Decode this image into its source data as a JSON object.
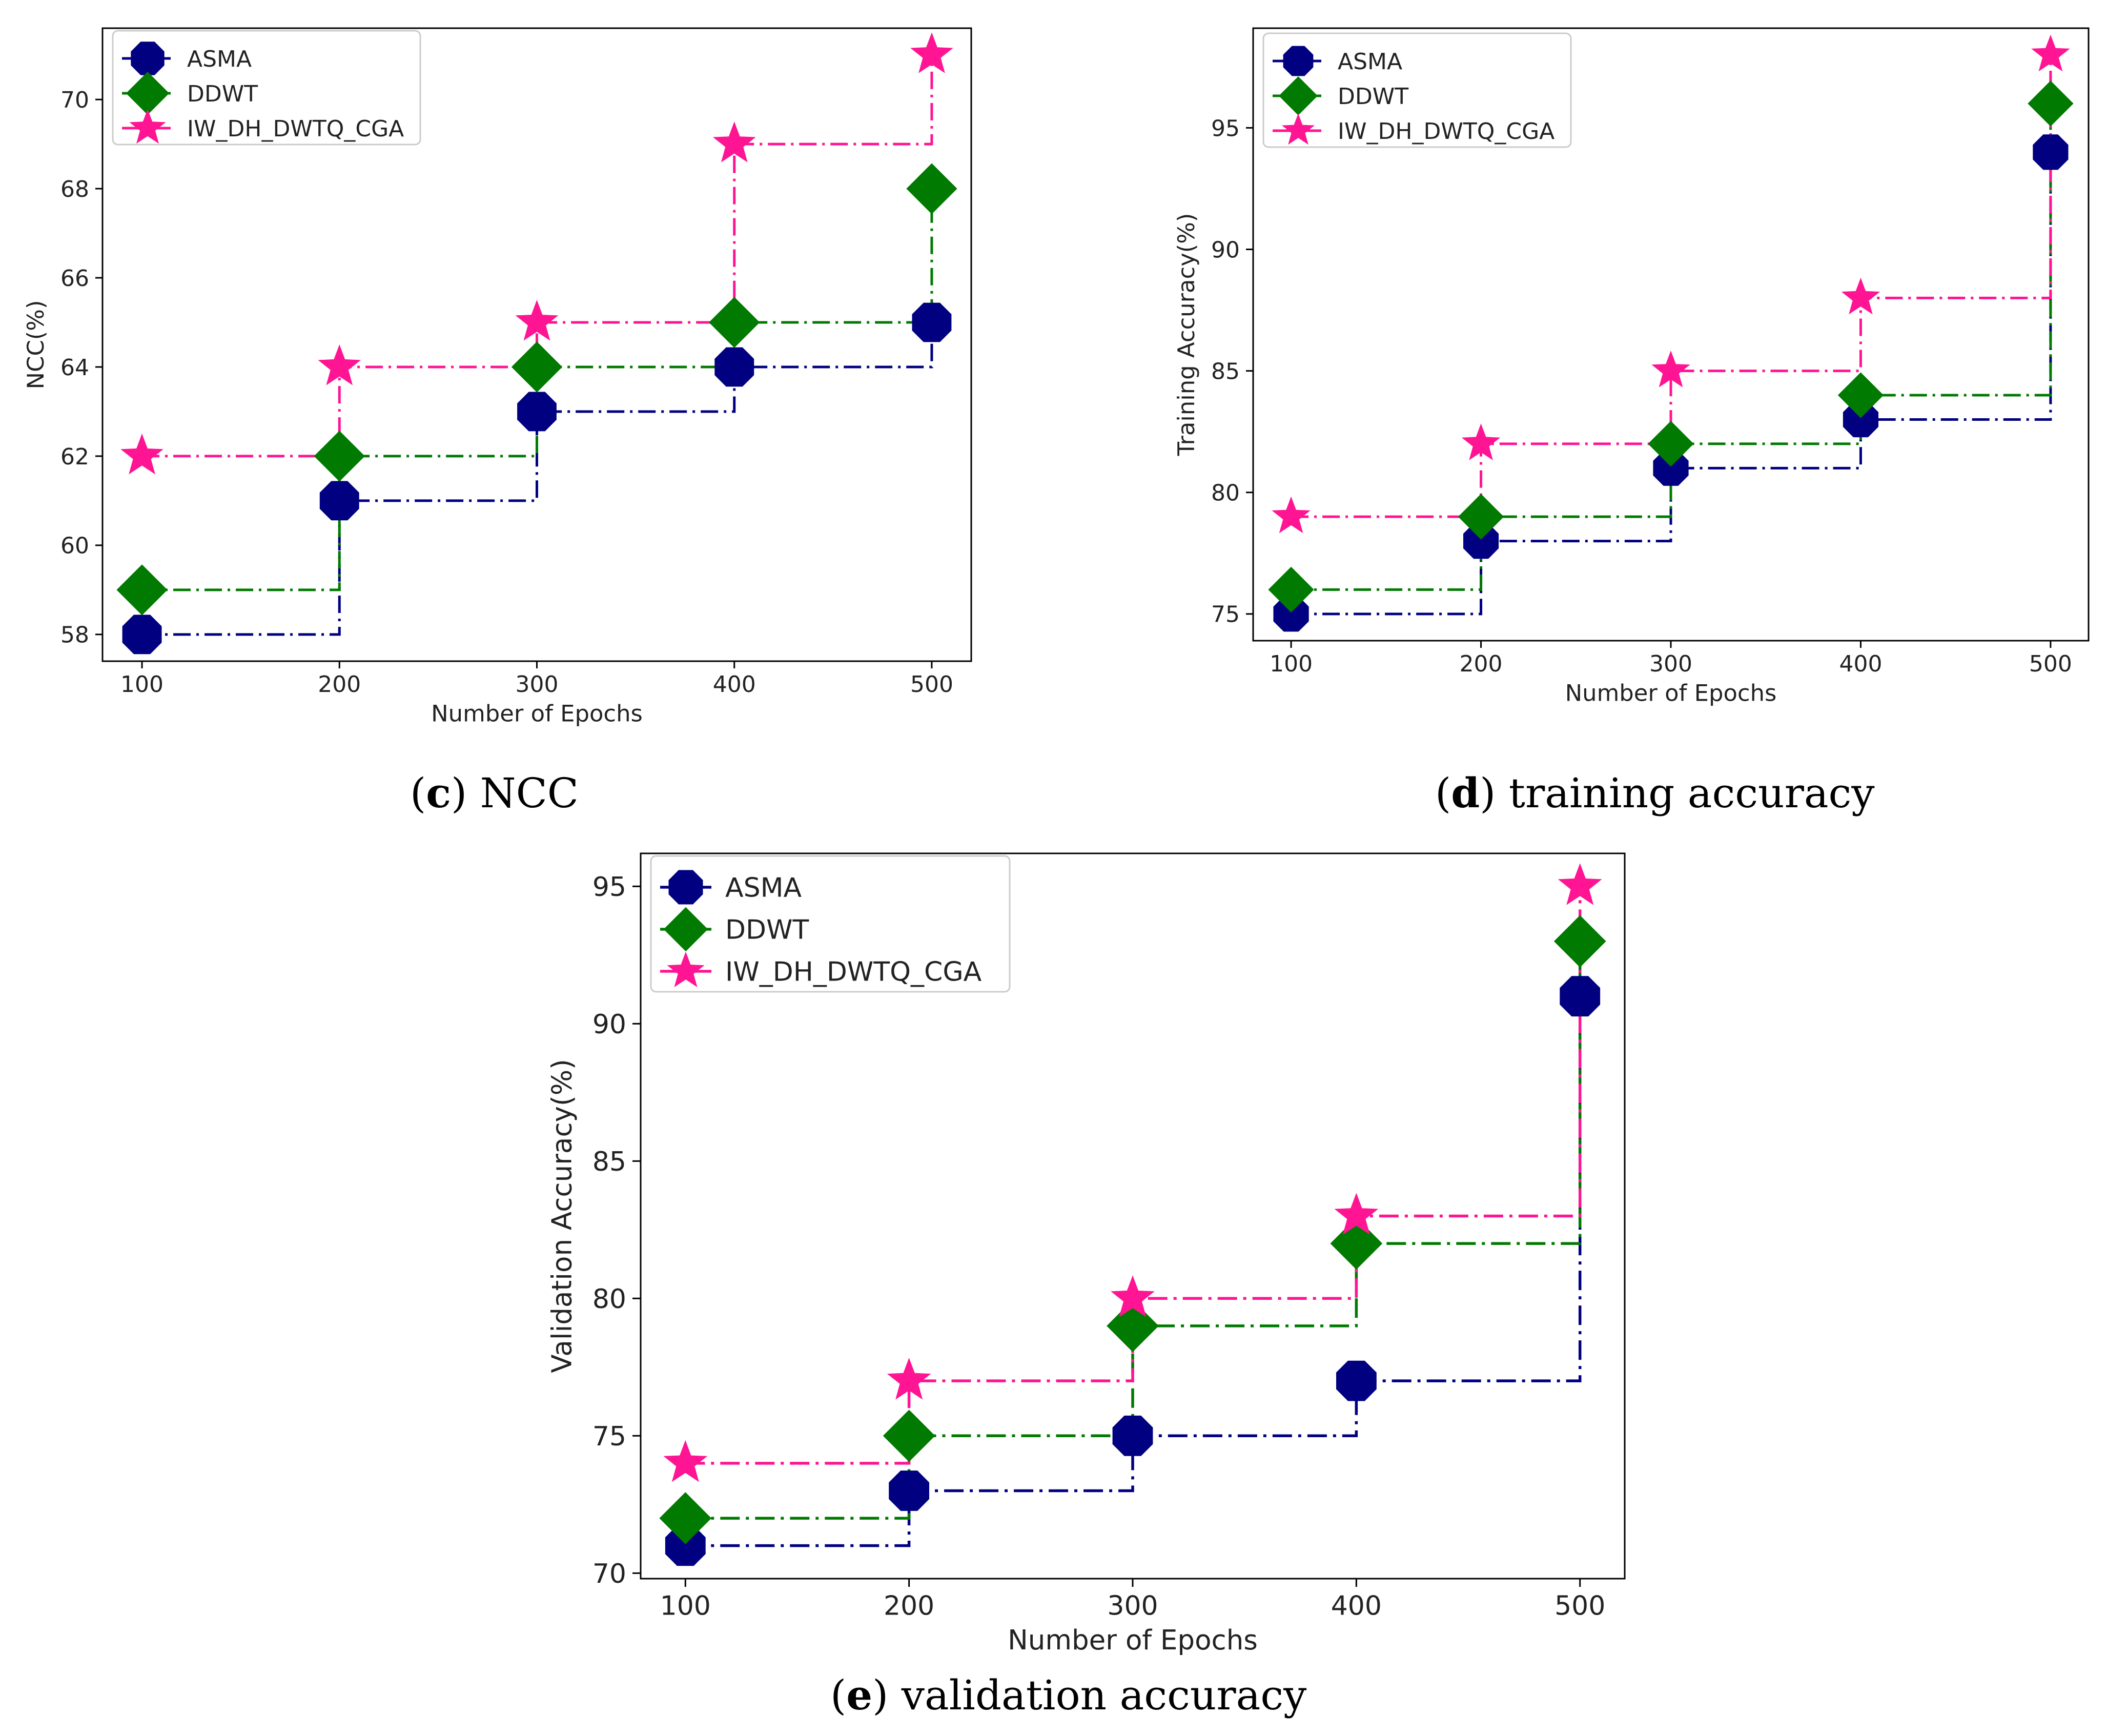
{
  "chart_data": [
    {
      "type": "line",
      "step": "post",
      "panel_letter": "c",
      "caption": "NCC",
      "xlabel": "Number of Epochs",
      "ylabel": "NCC(%)",
      "x": [
        100,
        200,
        300,
        400,
        500
      ],
      "xticks": [
        100,
        200,
        300,
        400,
        500
      ],
      "yticks": [
        58,
        60,
        62,
        64,
        66,
        68,
        70
      ],
      "xlim": [
        80,
        520
      ],
      "ylim": [
        57.4,
        71.6
      ],
      "legend_position": "top-left",
      "series": [
        {
          "name": "ASMA",
          "values": [
            58,
            61,
            63,
            64,
            65
          ],
          "color": "#000080",
          "marker": "octagon"
        },
        {
          "name": "DDWT",
          "values": [
            59,
            62,
            64,
            65,
            68
          ],
          "color": "#007a00",
          "marker": "diamond"
        },
        {
          "name": "IW_DH_DWTQ_CGA",
          "values": [
            62,
            64,
            65,
            69,
            71
          ],
          "color": "#ff1493",
          "marker": "star"
        }
      ]
    },
    {
      "type": "line",
      "step": "post",
      "panel_letter": "d",
      "caption": "training accuracy",
      "xlabel": "Number of Epochs",
      "ylabel": "Training Accuracy(%)",
      "x": [
        100,
        200,
        300,
        400,
        500
      ],
      "xticks": [
        100,
        200,
        300,
        400,
        500
      ],
      "yticks": [
        75,
        80,
        85,
        90,
        95
      ],
      "xlim": [
        80,
        520
      ],
      "ylim": [
        73.9,
        99.1
      ],
      "legend_position": "top-left",
      "series": [
        {
          "name": "ASMA",
          "values": [
            75,
            78,
            81,
            83,
            94
          ],
          "color": "#000080",
          "marker": "octagon"
        },
        {
          "name": "DDWT",
          "values": [
            76,
            79,
            82,
            84,
            96
          ],
          "color": "#007a00",
          "marker": "diamond"
        },
        {
          "name": "IW_DH_DWTQ_CGA",
          "values": [
            79,
            82,
            85,
            88,
            98
          ],
          "color": "#ff1493",
          "marker": "star"
        }
      ]
    },
    {
      "type": "line",
      "step": "post",
      "panel_letter": "e",
      "caption": "validation accuracy",
      "xlabel": "Number of Epochs",
      "ylabel": "Validation Accuracy(%)",
      "x": [
        100,
        200,
        300,
        400,
        500
      ],
      "xticks": [
        100,
        200,
        300,
        400,
        500
      ],
      "yticks": [
        70,
        75,
        80,
        85,
        90,
        95
      ],
      "xlim": [
        80,
        520
      ],
      "ylim": [
        69.8,
        96.2
      ],
      "legend_position": "top-left",
      "series": [
        {
          "name": "ASMA",
          "values": [
            71,
            73,
            75,
            77,
            91
          ],
          "color": "#000080",
          "marker": "octagon"
        },
        {
          "name": "DDWT",
          "values": [
            72,
            75,
            79,
            82,
            93
          ],
          "color": "#007a00",
          "marker": "diamond"
        },
        {
          "name": "IW_DH_DWTQ_CGA",
          "values": [
            74,
            77,
            80,
            83,
            95
          ],
          "color": "#ff1493",
          "marker": "star"
        }
      ]
    }
  ]
}
